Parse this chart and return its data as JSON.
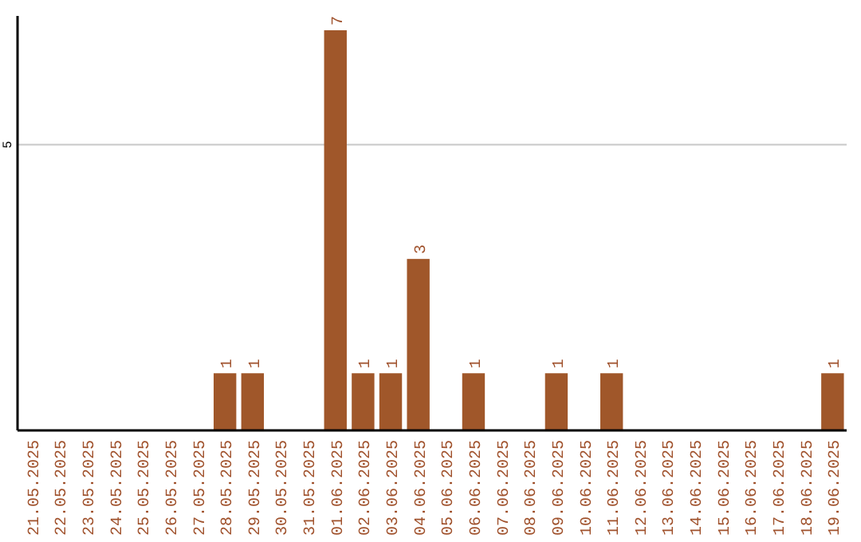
{
  "chart_data": {
    "type": "bar",
    "categories": [
      "21.05.2025",
      "22.05.2025",
      "23.05.2025",
      "24.05.2025",
      "25.05.2025",
      "26.05.2025",
      "27.05.2025",
      "28.05.2025",
      "29.05.2025",
      "30.05.2025",
      "31.05.2025",
      "01.06.2025",
      "02.06.2025",
      "03.06.2025",
      "04.06.2025",
      "05.06.2025",
      "06.06.2025",
      "07.06.2025",
      "08.06.2025",
      "09.06.2025",
      "10.06.2025",
      "11.06.2025",
      "12.06.2025",
      "13.06.2025",
      "14.06.2025",
      "15.06.2025",
      "16.06.2025",
      "17.06.2025",
      "18.06.2025",
      "19.06.2025"
    ],
    "values": [
      0,
      0,
      0,
      0,
      0,
      0,
      0,
      1,
      1,
      0,
      0,
      7,
      1,
      1,
      3,
      0,
      1,
      0,
      0,
      1,
      0,
      1,
      0,
      0,
      0,
      0,
      0,
      0,
      0,
      1
    ],
    "value_labels": [
      null,
      null,
      null,
      null,
      null,
      null,
      null,
      "1",
      "1",
      null,
      null,
      "7",
      "1",
      "1",
      "3",
      null,
      "1",
      null,
      null,
      "1",
      null,
      "1",
      null,
      null,
      null,
      null,
      null,
      null,
      null,
      "1"
    ],
    "color": "#a0572a",
    "ylim": [
      0,
      7.25
    ],
    "yticks": [
      5
    ],
    "grid": "y"
  }
}
